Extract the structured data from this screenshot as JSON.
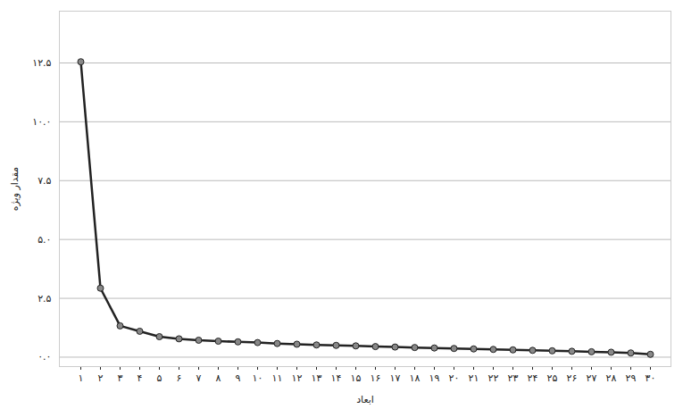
{
  "chart_data": {
    "type": "line",
    "xlabel": "ابعاد",
    "ylabel": "مقدار ویژه",
    "categories": [
      "۱",
      "۲",
      "۳",
      "۴",
      "۵",
      "۶",
      "۷",
      "۸",
      "۹",
      "۱۰",
      "۱۱",
      "۱۲",
      "۱۳",
      "۱۴",
      "۱۵",
      "۱۶",
      "۱۷",
      "۱۸",
      "۱۹",
      "۲۰",
      "۲۱",
      "۲۲",
      "۲۳",
      "۲۴",
      "۲۵",
      "۲۶",
      "۲۷",
      "۲۸",
      "۲۹",
      "۳۰"
    ],
    "values": [
      12.55,
      2.93,
      1.33,
      1.1,
      0.87,
      0.78,
      0.72,
      0.68,
      0.65,
      0.62,
      0.58,
      0.55,
      0.52,
      0.5,
      0.48,
      0.45,
      0.43,
      0.41,
      0.39,
      0.37,
      0.35,
      0.33,
      0.31,
      0.29,
      0.27,
      0.25,
      0.23,
      0.21,
      0.18,
      0.12
    ],
    "color": "#222222",
    "marker": "circle",
    "ylim": [
      -0.4,
      14.7
    ],
    "yticks": [
      {
        "value": 0,
        "label": "۰.۰"
      },
      {
        "value": 2.5,
        "label": "۲.۵"
      },
      {
        "value": 5,
        "label": "۵.۰"
      },
      {
        "value": 7.5,
        "label": "۷.۵"
      },
      {
        "value": 10,
        "label": "۱۰.۰"
      },
      {
        "value": 12.5,
        "label": "۱۲.۵"
      }
    ],
    "grid": true
  }
}
